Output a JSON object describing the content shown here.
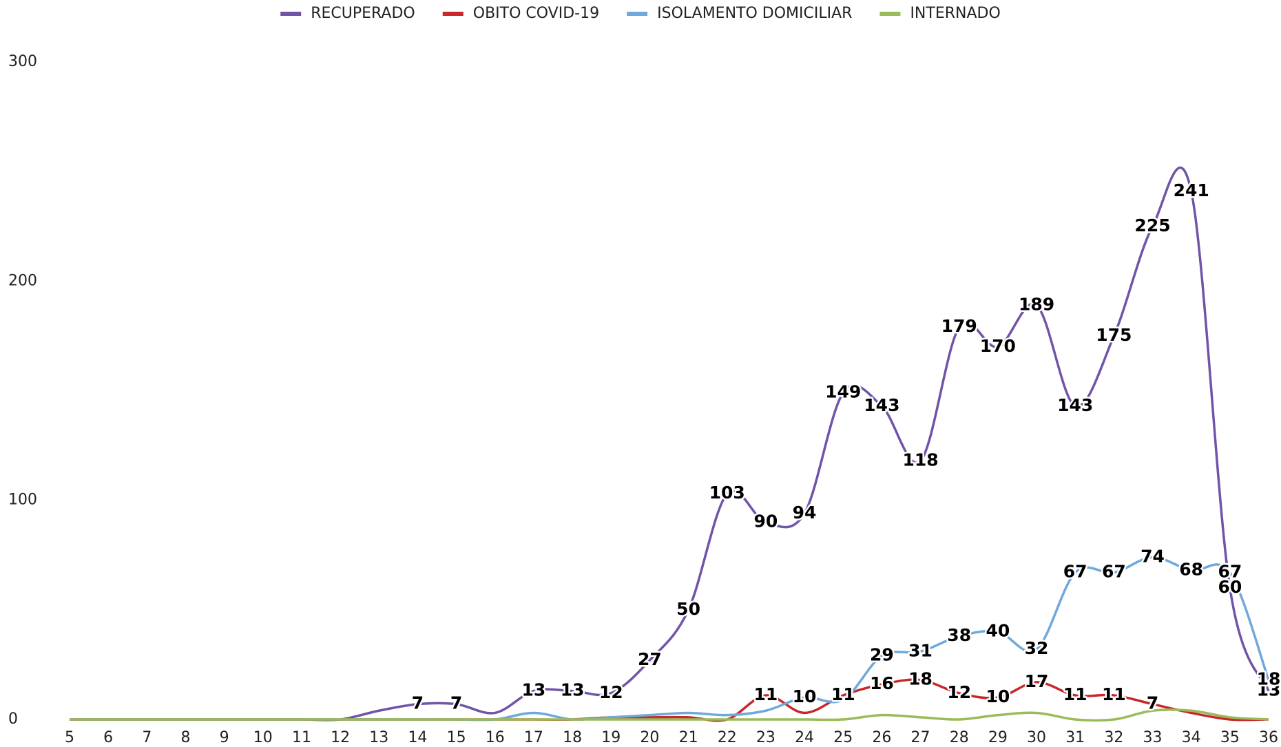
{
  "chart_data": {
    "type": "line",
    "categories": [
      "5",
      "6",
      "7",
      "8",
      "9",
      "10",
      "11",
      "12",
      "13",
      "14",
      "15",
      "16",
      "17",
      "18",
      "19",
      "20",
      "21",
      "22",
      "23",
      "24",
      "25",
      "26",
      "27",
      "28",
      "29",
      "30",
      "31",
      "32",
      "33",
      "34",
      "35",
      "36"
    ],
    "series": [
      {
        "name": "RECUPERADO",
        "color": "#7153a8",
        "values": [
          0,
          0,
          0,
          0,
          0,
          0,
          0,
          0,
          4,
          7,
          7,
          3,
          13,
          13,
          12,
          27,
          50,
          103,
          90,
          94,
          149,
          143,
          118,
          179,
          170,
          189,
          143,
          175,
          225,
          241,
          60,
          13
        ],
        "value_labels": [
          null,
          null,
          null,
          null,
          null,
          null,
          null,
          null,
          null,
          "7",
          "7",
          null,
          "13",
          "13",
          "12",
          "27",
          "50",
          "103",
          "90",
          "94",
          "149",
          "143",
          "118",
          "179",
          "170",
          "189",
          "143",
          "175",
          "225",
          "241",
          "60",
          "13"
        ]
      },
      {
        "name": "OBITO COVID-19",
        "color": "#c8282a",
        "values": [
          0,
          0,
          0,
          0,
          0,
          0,
          0,
          0,
          0,
          0,
          0,
          0,
          0,
          0,
          1,
          1,
          1,
          0,
          11,
          3,
          11,
          16,
          18,
          12,
          10,
          17,
          11,
          11,
          7,
          3,
          0,
          0
        ],
        "value_labels": [
          null,
          null,
          null,
          null,
          null,
          null,
          null,
          null,
          null,
          null,
          null,
          null,
          null,
          null,
          null,
          null,
          null,
          null,
          "11",
          null,
          "11",
          "16",
          "18",
          "12",
          "10",
          "17",
          "11",
          "11",
          "7",
          null,
          null,
          null
        ]
      },
      {
        "name": "ISOLAMENTO DOMICILIAR",
        "color": "#6fa8dc",
        "values": [
          0,
          0,
          0,
          0,
          0,
          0,
          0,
          0,
          0,
          0,
          0,
          0,
          3,
          0,
          1,
          2,
          3,
          2,
          4,
          10,
          9,
          29,
          31,
          38,
          40,
          32,
          67,
          67,
          74,
          68,
          67,
          18
        ],
        "value_labels": [
          null,
          null,
          null,
          null,
          null,
          null,
          null,
          null,
          null,
          null,
          null,
          null,
          null,
          null,
          null,
          null,
          null,
          null,
          null,
          "10",
          null,
          "29",
          "31",
          "38",
          "40",
          "32",
          "67",
          "67",
          "74",
          "68",
          "67",
          "18"
        ]
      },
      {
        "name": "INTERNADO",
        "color": "#9bbb59",
        "values": [
          0,
          0,
          0,
          0,
          0,
          0,
          0,
          0,
          0,
          0,
          0,
          0,
          0,
          0,
          0,
          0,
          0,
          0,
          0,
          0,
          0,
          2,
          1,
          0,
          2,
          3,
          0,
          0,
          4,
          4,
          1,
          0
        ],
        "value_labels": [
          null,
          null,
          null,
          null,
          null,
          null,
          null,
          null,
          null,
          null,
          null,
          null,
          null,
          null,
          null,
          null,
          null,
          null,
          null,
          null,
          null,
          null,
          null,
          null,
          null,
          null,
          null,
          null,
          null,
          null,
          null,
          null
        ]
      }
    ],
    "ylim": [
      0,
      300
    ],
    "yticks": [
      0,
      100,
      200,
      300
    ],
    "grid": false,
    "legend": "top"
  }
}
